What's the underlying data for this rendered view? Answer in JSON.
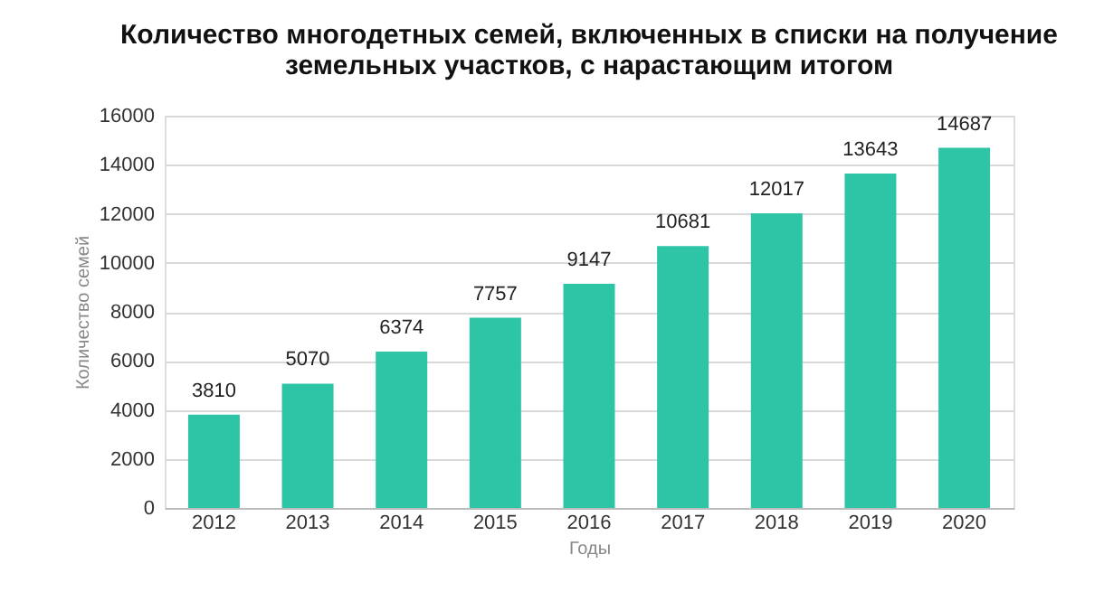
{
  "chart_data": {
    "type": "bar",
    "title": [
      "Количество многодетных семей, включенных в списки на получение",
      "земельных участков, с нарастающим итогом"
    ],
    "categories": [
      "2012",
      "2013",
      "2014",
      "2015",
      "2016",
      "2017",
      "2018",
      "2019",
      "2020"
    ],
    "values": [
      3810,
      5070,
      6374,
      7757,
      9147,
      10681,
      12017,
      13643,
      14687
    ],
    "color": "#2ec4a6",
    "xlabel": "Годы",
    "ylabel": "Количество семей",
    "ylim": [
      0,
      16000
    ],
    "yticks": [
      0,
      2000,
      4000,
      6000,
      8000,
      10000,
      12000,
      14000,
      16000
    ],
    "grid": "y",
    "data_labels": true
  }
}
